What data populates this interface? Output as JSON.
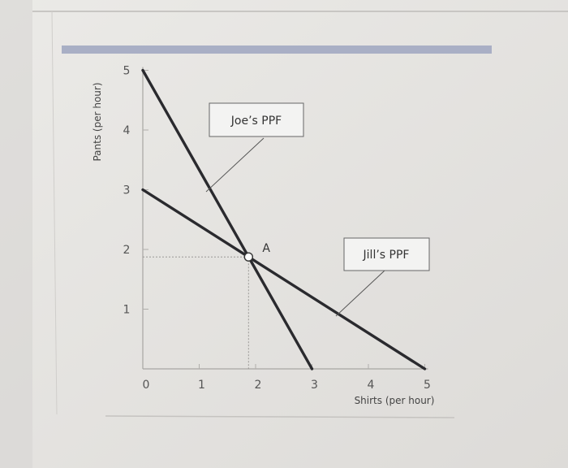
{
  "chart_data": {
    "type": "line",
    "xlabel": "Shirts (per hour)",
    "ylabel": "Pants (per hour)",
    "xlim": [
      0,
      5
    ],
    "ylim": [
      0,
      5
    ],
    "x_ticks": [
      "0",
      "1",
      "2",
      "3",
      "4",
      "5"
    ],
    "y_ticks": [
      "1",
      "2",
      "3",
      "4",
      "5"
    ],
    "series": [
      {
        "name": "Joe's PPF",
        "x": [
          0,
          3
        ],
        "y": [
          5,
          0
        ],
        "color": "#2a2a2e"
      },
      {
        "name": "Jill's PPF",
        "x": [
          0,
          5
        ],
        "y": [
          3,
          0
        ],
        "color": "#2a2a2e"
      }
    ],
    "annotations": {
      "joe_label": "Joe’s PPF",
      "jill_label": "Jill’s PPF",
      "point_label": "A",
      "point": {
        "x": 1.875,
        "y": 1.875
      }
    },
    "header_bar_color": "#a9afc5",
    "grid": false
  }
}
